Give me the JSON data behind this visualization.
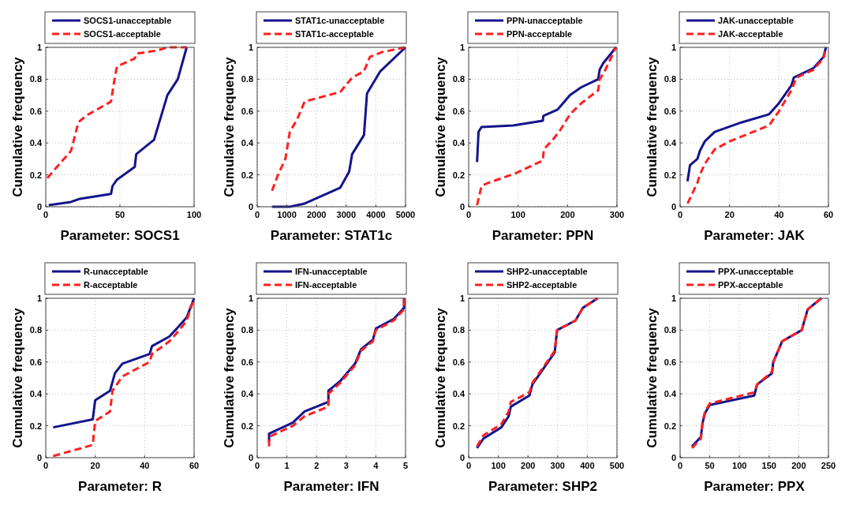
{
  "chart_data": [
    {
      "type": "line",
      "xlabel": "Parameter: SOCS1",
      "ylabel": "Cumulative frequency",
      "xlim": [
        0,
        100
      ],
      "xticks": [
        0,
        50,
        100
      ],
      "ylim": [
        0,
        1
      ],
      "yticks": [
        0,
        0.2,
        0.4,
        0.6,
        0.8,
        1
      ],
      "grid": true,
      "legend": "top",
      "series": [
        {
          "name": "SOCS1-unacceptable",
          "color": "#14148c",
          "line_style": "solid",
          "x": [
            2,
            17,
            23,
            44,
            45,
            48,
            60,
            61,
            73,
            82,
            89,
            95
          ],
          "values": [
            0.01,
            0.03,
            0.05,
            0.08,
            0.13,
            0.17,
            0.25,
            0.33,
            0.42,
            0.7,
            0.8,
            1
          ]
        },
        {
          "name": "SOCS1-acceptable",
          "color": "#ff2020",
          "line_style": "dashed",
          "x": [
            1,
            17,
            22,
            27,
            44,
            46,
            48,
            60,
            61,
            75,
            82,
            95
          ],
          "values": [
            0.18,
            0.35,
            0.53,
            0.57,
            0.66,
            0.78,
            0.88,
            0.93,
            0.96,
            0.98,
            1,
            1
          ]
        }
      ]
    },
    {
      "type": "line",
      "xlabel": "Parameter: STAT1c",
      "ylabel": "Cumulative frequency",
      "xlim": [
        0,
        5000
      ],
      "xticks": [
        0,
        1000,
        2000,
        3000,
        4000,
        5000
      ],
      "ylim": [
        0,
        1
      ],
      "yticks": [
        0,
        0.2,
        0.4,
        0.6,
        0.8,
        1
      ],
      "grid": true,
      "legend": "top",
      "series": [
        {
          "name": "STAT1c-unacceptable",
          "color": "#14148c",
          "line_style": "solid",
          "x": [
            500,
            1100,
            1600,
            2800,
            3100,
            3200,
            3600,
            3700,
            4150,
            5000
          ],
          "values": [
            0,
            0,
            0.02,
            0.12,
            0.22,
            0.33,
            0.45,
            0.71,
            0.85,
            1
          ]
        },
        {
          "name": "STAT1c-acceptable",
          "color": "#ff2020",
          "line_style": "dashed",
          "x": [
            500,
            700,
            950,
            1100,
            1350,
            1600,
            2800,
            3200,
            3600,
            3800,
            4200,
            5000
          ],
          "values": [
            0.1,
            0.2,
            0.3,
            0.47,
            0.55,
            0.66,
            0.72,
            0.81,
            0.85,
            0.94,
            0.97,
            1
          ]
        }
      ]
    },
    {
      "type": "line",
      "xlabel": "Parameter: PPN",
      "ylabel": "Cumulative frequency",
      "xlim": [
        0,
        300
      ],
      "xticks": [
        0,
        100,
        200,
        300
      ],
      "ylim": [
        0,
        1
      ],
      "yticks": [
        0,
        0.2,
        0.4,
        0.6,
        0.8,
        1
      ],
      "grid": true,
      "legend": "top",
      "series": [
        {
          "name": "PPN-unacceptable",
          "color": "#14148c",
          "line_style": "solid",
          "x": [
            17,
            20,
            26,
            90,
            150,
            151,
            180,
            205,
            228,
            262,
            265,
            272,
            298
          ],
          "values": [
            0.28,
            0.47,
            0.5,
            0.51,
            0.54,
            0.57,
            0.61,
            0.7,
            0.75,
            0.8,
            0.86,
            0.9,
            1
          ]
        },
        {
          "name": "PPN-acceptable",
          "color": "#ff2020",
          "line_style": "dashed",
          "x": [
            17,
            26,
            40,
            95,
            150,
            152,
            170,
            185,
            205,
            228,
            262,
            265,
            275,
            298
          ],
          "values": [
            0.01,
            0.13,
            0.15,
            0.21,
            0.29,
            0.36,
            0.42,
            0.48,
            0.58,
            0.65,
            0.73,
            0.8,
            0.85,
            1
          ]
        }
      ]
    },
    {
      "type": "line",
      "xlabel": "Parameter: JAK",
      "ylabel": "Cumulative frequency",
      "xlim": [
        0,
        60
      ],
      "xticks": [
        0,
        20,
        40,
        60
      ],
      "ylim": [
        0,
        1
      ],
      "yticks": [
        0,
        0.2,
        0.4,
        0.6,
        0.8,
        1
      ],
      "grid": true,
      "legend": "top",
      "series": [
        {
          "name": "JAK-unacceptable",
          "color": "#14148c",
          "line_style": "solid",
          "x": [
            3,
            4,
            7,
            8,
            10,
            14,
            25,
            36,
            40,
            45,
            46,
            54,
            58,
            59
          ],
          "values": [
            0.16,
            0.26,
            0.3,
            0.35,
            0.41,
            0.47,
            0.53,
            0.58,
            0.65,
            0.76,
            0.81,
            0.87,
            0.94,
            1
          ]
        },
        {
          "name": "JAK-acceptable",
          "color": "#ff2020",
          "line_style": "dashed",
          "x": [
            3,
            7,
            8,
            10,
            14,
            20,
            36,
            40,
            45,
            47,
            54,
            58,
            59
          ],
          "values": [
            0.02,
            0.15,
            0.2,
            0.27,
            0.36,
            0.41,
            0.51,
            0.6,
            0.73,
            0.81,
            0.86,
            0.93,
            1
          ]
        }
      ]
    },
    {
      "type": "line",
      "xlabel": "Parameter: R",
      "ylabel": "Cumulative frequency",
      "xlim": [
        0,
        60
      ],
      "xticks": [
        0,
        20,
        40,
        60
      ],
      "ylim": [
        0,
        1
      ],
      "yticks": [
        0,
        0.2,
        0.4,
        0.6,
        0.8,
        1
      ],
      "grid": true,
      "legend": "top",
      "series": [
        {
          "name": "R-unacceptable",
          "color": "#14148c",
          "line_style": "solid",
          "x": [
            3,
            19,
            20,
            26,
            28,
            31,
            42,
            43,
            50,
            53,
            57,
            60
          ],
          "values": [
            0.19,
            0.24,
            0.36,
            0.42,
            0.53,
            0.59,
            0.65,
            0.7,
            0.76,
            0.81,
            0.88,
            1
          ]
        },
        {
          "name": "R-acceptable",
          "color": "#ff2020",
          "line_style": "dashed",
          "x": [
            3,
            19,
            20,
            26,
            27,
            31,
            42,
            43,
            50,
            54,
            57,
            60
          ],
          "values": [
            0.01,
            0.08,
            0.23,
            0.29,
            0.42,
            0.51,
            0.6,
            0.65,
            0.73,
            0.8,
            0.86,
            1
          ]
        }
      ]
    },
    {
      "type": "line",
      "xlabel": "Parameter: IFN",
      "ylabel": "Cumulative frequency",
      "xlim": [
        0,
        5
      ],
      "xticks": [
        0,
        1,
        2,
        3,
        4,
        5
      ],
      "ylim": [
        0,
        1
      ],
      "yticks": [
        0,
        0.2,
        0.4,
        0.6,
        0.8,
        1
      ],
      "grid": true,
      "legend": "top",
      "series": [
        {
          "name": "IFN-unacceptable",
          "color": "#14148c",
          "line_style": "solid",
          "x": [
            0.4,
            0.4,
            1.2,
            1.6,
            2.4,
            2.4,
            2.8,
            3.3,
            3.5,
            3.9,
            4,
            4.6,
            4.95,
            4.95
          ],
          "values": [
            0.1,
            0.15,
            0.22,
            0.29,
            0.35,
            0.42,
            0.48,
            0.59,
            0.68,
            0.74,
            0.81,
            0.87,
            0.94,
            1
          ]
        },
        {
          "name": "IFN-acceptable",
          "color": "#ff2020",
          "line_style": "dashed",
          "x": [
            0.4,
            0.4,
            1.2,
            1.6,
            2.4,
            2.4,
            2.8,
            3.3,
            3.5,
            3.9,
            4,
            4.6,
            4.95,
            4.95
          ],
          "values": [
            0.07,
            0.13,
            0.2,
            0.26,
            0.32,
            0.4,
            0.47,
            0.58,
            0.67,
            0.73,
            0.8,
            0.86,
            0.93,
            1
          ]
        }
      ]
    },
    {
      "type": "line",
      "xlabel": "Parameter: SHP2",
      "ylabel": "Cumulative frequency",
      "xlim": [
        0,
        500
      ],
      "xticks": [
        0,
        100,
        200,
        300,
        400,
        500
      ],
      "ylim": [
        0,
        1
      ],
      "yticks": [
        0,
        0.2,
        0.4,
        0.6,
        0.8,
        1
      ],
      "grid": true,
      "legend": "top",
      "series": [
        {
          "name": "SHP2-unacceptable",
          "color": "#14148c",
          "line_style": "solid",
          "x": [
            28,
            50,
            110,
            135,
            142,
            205,
            215,
            260,
            290,
            298,
            360,
            385,
            435
          ],
          "values": [
            0.06,
            0.12,
            0.19,
            0.26,
            0.32,
            0.39,
            0.46,
            0.58,
            0.66,
            0.8,
            0.86,
            0.94,
            1
          ]
        },
        {
          "name": "SHP2-acceptable",
          "color": "#ff2020",
          "line_style": "dashed",
          "x": [
            28,
            50,
            110,
            135,
            142,
            205,
            215,
            260,
            290,
            298,
            360,
            385,
            435
          ],
          "values": [
            0.07,
            0.14,
            0.21,
            0.29,
            0.35,
            0.41,
            0.47,
            0.59,
            0.67,
            0.8,
            0.86,
            0.94,
            1
          ]
        }
      ]
    },
    {
      "type": "line",
      "xlabel": "Parameter: PPX",
      "ylabel": "Cumulative frequency",
      "xlim": [
        0,
        250
      ],
      "xticks": [
        0,
        50,
        100,
        150,
        200,
        250
      ],
      "ylim": [
        0,
        1
      ],
      "yticks": [
        0,
        0.2,
        0.4,
        0.6,
        0.8,
        1
      ],
      "grid": true,
      "legend": "top",
      "series": [
        {
          "name": "PPX-unacceptable",
          "color": "#14148c",
          "line_style": "solid",
          "x": [
            20,
            35,
            38,
            42,
            50,
            125,
            130,
            155,
            157,
            172,
            205,
            215,
            238
          ],
          "values": [
            0.07,
            0.13,
            0.22,
            0.28,
            0.33,
            0.39,
            0.46,
            0.53,
            0.6,
            0.73,
            0.8,
            0.93,
            1
          ]
        },
        {
          "name": "PPX-acceptable",
          "color": "#ff2020",
          "line_style": "dashed",
          "x": [
            20,
            35,
            38,
            42,
            50,
            125,
            130,
            155,
            157,
            172,
            205,
            215,
            238
          ],
          "values": [
            0.06,
            0.12,
            0.23,
            0.29,
            0.34,
            0.41,
            0.46,
            0.54,
            0.6,
            0.73,
            0.8,
            0.93,
            1
          ]
        }
      ]
    }
  ]
}
